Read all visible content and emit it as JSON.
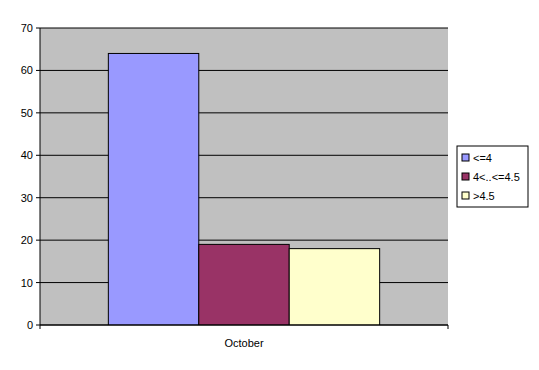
{
  "chart_data": {
    "type": "bar",
    "categories": [
      "October"
    ],
    "series": [
      {
        "name": "<=4",
        "color": "#9999ff",
        "values": [
          64
        ]
      },
      {
        "name": "4<..<=4.5",
        "color": "#993366",
        "values": [
          19
        ]
      },
      {
        "name": ">4.5",
        "color": "#ffffcc",
        "values": [
          18
        ]
      }
    ],
    "ylim": [
      0,
      70
    ],
    "yticks": [
      0,
      10,
      20,
      30,
      40,
      50,
      60,
      70
    ],
    "grid": true,
    "legend": "right"
  }
}
